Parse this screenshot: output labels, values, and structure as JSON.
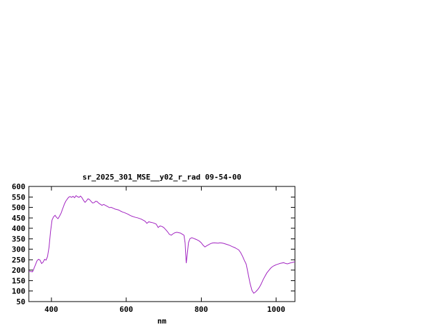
{
  "window": {
    "background_color": "#ffffff"
  },
  "chart_data": {
    "type": "line",
    "title": "sr_2025_301_MSE__y02_r_rad 09-54-00",
    "xlabel": "nm",
    "ylabel": "",
    "xlim": [
      340,
      1050
    ],
    "ylim": [
      50,
      600
    ],
    "xticks": [
      400,
      600,
      800,
      1000
    ],
    "yticks": [
      50,
      100,
      150,
      200,
      250,
      300,
      350,
      400,
      450,
      500,
      550,
      600
    ],
    "grid": false,
    "legend": "none",
    "border_color": "#000000",
    "line_color": "#a020c0",
    "x": [
      340,
      350,
      356,
      362,
      366,
      370,
      374,
      378,
      382,
      386,
      390,
      394,
      398,
      402,
      406,
      410,
      414,
      418,
      422,
      426,
      430,
      434,
      438,
      442,
      446,
      450,
      454,
      458,
      462,
      466,
      470,
      474,
      478,
      482,
      486,
      490,
      494,
      498,
      502,
      506,
      510,
      514,
      518,
      522,
      526,
      530,
      535,
      540,
      545,
      550,
      555,
      560,
      565,
      570,
      575,
      580,
      585,
      590,
      595,
      600,
      605,
      610,
      615,
      620,
      625,
      630,
      635,
      640,
      645,
      650,
      655,
      660,
      665,
      670,
      675,
      680,
      685,
      690,
      695,
      700,
      705,
      710,
      715,
      720,
      725,
      730,
      735,
      740,
      745,
      750,
      754,
      757,
      760,
      763,
      766,
      770,
      775,
      780,
      785,
      790,
      795,
      800,
      805,
      810,
      815,
      820,
      825,
      830,
      835,
      840,
      845,
      850,
      855,
      860,
      865,
      870,
      875,
      880,
      885,
      890,
      895,
      900,
      905,
      910,
      915,
      920,
      925,
      930,
      935,
      940,
      945,
      950,
      955,
      960,
      965,
      970,
      975,
      980,
      985,
      990,
      995,
      1000,
      1005,
      1010,
      1015,
      1020,
      1025,
      1030,
      1035,
      1040,
      1045,
      1050
    ],
    "y": [
      195,
      192,
      218,
      245,
      252,
      248,
      232,
      238,
      252,
      248,
      265,
      310,
      385,
      440,
      455,
      462,
      452,
      446,
      458,
      472,
      492,
      512,
      528,
      538,
      548,
      552,
      548,
      553,
      546,
      556,
      551,
      548,
      554,
      546,
      533,
      524,
      532,
      541,
      537,
      529,
      521,
      522,
      529,
      528,
      521,
      516,
      510,
      514,
      509,
      504,
      499,
      500,
      496,
      492,
      490,
      487,
      482,
      478,
      475,
      471,
      467,
      462,
      458,
      455,
      452,
      450,
      447,
      444,
      439,
      434,
      424,
      431,
      429,
      427,
      424,
      420,
      404,
      411,
      409,
      404,
      394,
      384,
      371,
      367,
      374,
      379,
      381,
      379,
      377,
      371,
      367,
      330,
      234,
      282,
      332,
      351,
      355,
      352,
      348,
      344,
      339,
      331,
      319,
      311,
      317,
      322,
      327,
      330,
      331,
      330,
      329,
      331,
      330,
      328,
      325,
      322,
      319,
      315,
      311,
      307,
      302,
      297,
      284,
      267,
      247,
      228,
      184,
      139,
      104,
      90,
      96,
      106,
      118,
      134,
      154,
      171,
      187,
      198,
      209,
      217,
      222,
      226,
      229,
      232,
      234,
      236,
      232,
      230,
      233,
      236,
      238,
      241
    ]
  }
}
